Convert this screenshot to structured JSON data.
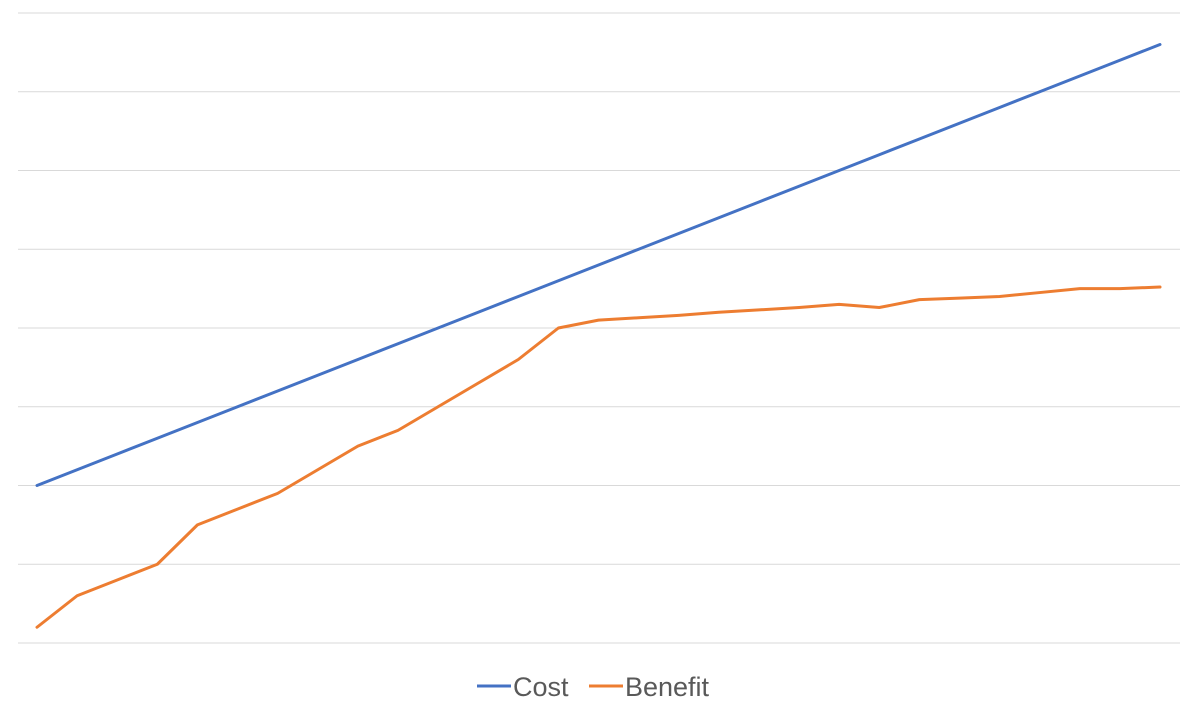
{
  "chart_data": {
    "type": "line",
    "title": "",
    "xlabel": "",
    "ylabel": "",
    "x": [
      1,
      2,
      3,
      4,
      5,
      6,
      7,
      8,
      9,
      10,
      11,
      12,
      13,
      14,
      15,
      16,
      17,
      18,
      19,
      20,
      21,
      22,
      23,
      24,
      25,
      26,
      27,
      28,
      29
    ],
    "ylim": [
      0,
      8
    ],
    "grid": true,
    "axis_labels_shown": false,
    "legend": {
      "position": "bottom"
    },
    "series": [
      {
        "name": "Cost",
        "color": "#4472C4",
        "values": [
          2.0,
          2.2,
          2.4,
          2.6,
          2.8,
          3.0,
          3.2,
          3.4,
          3.6,
          3.8,
          4.0,
          4.2,
          4.4,
          4.6,
          4.8,
          5.0,
          5.2,
          5.4,
          5.6,
          5.8,
          6.0,
          6.2,
          6.4,
          6.6,
          6.8,
          7.0,
          7.2,
          7.4,
          7.6
        ]
      },
      {
        "name": "Benefit",
        "color": "#ED7D31",
        "values": [
          0.2,
          0.6,
          0.8,
          1.0,
          1.5,
          1.7,
          1.9,
          2.2,
          2.5,
          2.7,
          3.0,
          3.3,
          3.6,
          4.0,
          4.1,
          4.13,
          4.16,
          4.2,
          4.23,
          4.26,
          4.3,
          4.26,
          4.36,
          4.38,
          4.4,
          4.45,
          4.5,
          4.5,
          4.52
        ]
      }
    ]
  }
}
